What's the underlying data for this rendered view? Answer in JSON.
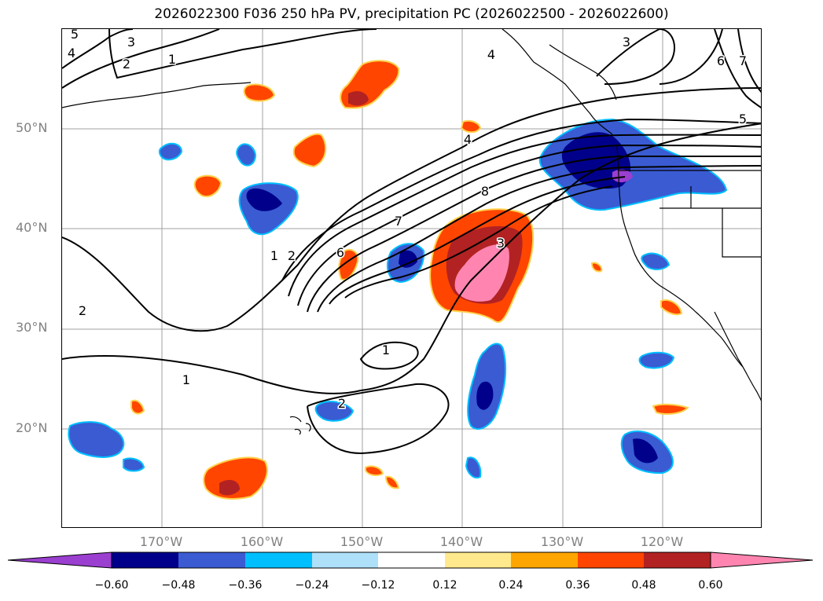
{
  "title": "2026022300 F036 250 hPa PV, precipitation PC (2026022500 - 2026022600)",
  "map": {
    "lat_labels": [
      "50°N",
      "40°N",
      "30°N",
      "20°N"
    ],
    "lon_labels": [
      "170°W",
      "160°W",
      "150°W",
      "140°W",
      "130°W",
      "120°W"
    ],
    "contour_labels": [
      "5",
      "4",
      "3",
      "2",
      "1",
      "4",
      "3",
      "6",
      "7",
      "5",
      "4",
      "8",
      "7",
      "6",
      "1",
      "2",
      "3",
      "2",
      "1",
      "1",
      "2"
    ],
    "gridline_color": "#a0a0a0",
    "coast_color": "#000000",
    "pv_line_color": "#000000"
  },
  "colorbar": {
    "ticks": [
      "−0.60",
      "−0.48",
      "−0.36",
      "−0.24",
      "−0.12",
      "0.12",
      "0.24",
      "0.36",
      "0.48",
      "0.60"
    ],
    "colors": [
      "#9a3fd0",
      "#00008b",
      "#3a5bd2",
      "#00bfff",
      "#aee0fa",
      "#ffffff",
      "#ffe98c",
      "#ffa500",
      "#ff4500",
      "#b22222",
      "#ff85b0"
    ]
  }
}
